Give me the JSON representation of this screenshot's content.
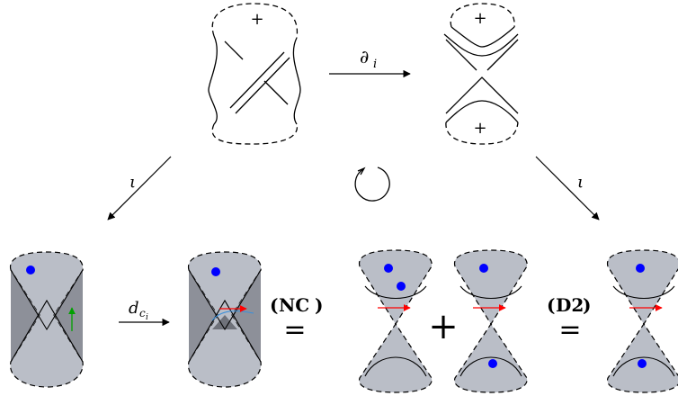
{
  "labels": {
    "top_arrow": "∂",
    "top_arrow_sub": "i",
    "iota_left": "ι",
    "iota_right": "ι",
    "bottom_arrow": "d",
    "bottom_arrow_sub": "c",
    "bottom_arrow_subsub": "i",
    "nc_open": "(",
    "nc": "NC",
    "nc_close": ")",
    "d2_open": "(",
    "d2": "D2",
    "d2_close": ")",
    "equals_1": "=",
    "equals_2": "=",
    "plus_op": "+",
    "plus_sign_1": "+",
    "plus_sign_2": "+",
    "plus_sign_3": "+"
  },
  "colors": {
    "surface": "#babec7",
    "surface_dark": "#8d9099",
    "surface_darker": "#6f727a",
    "dot": "#0000ff",
    "arrow_green": "#00a000",
    "arrow_red": "#ff0000",
    "curve_blue": "#3b8fd9"
  },
  "icons": {
    "rotation": "circular-arrow-icon"
  }
}
